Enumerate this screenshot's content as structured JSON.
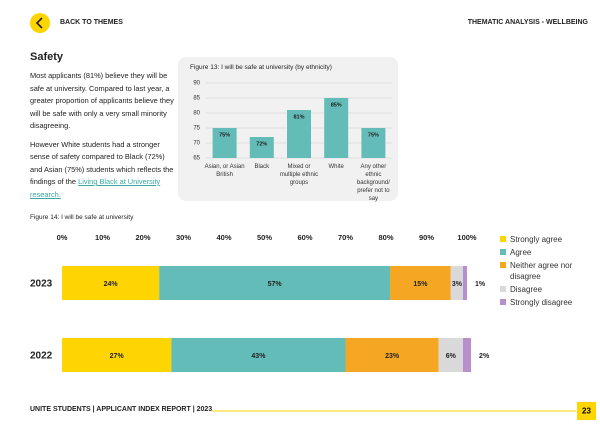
{
  "header": {
    "back": "BACK TO THEMES",
    "section": "THEMATIC ANALYSIS - WELLBEING"
  },
  "text": {
    "heading": "Safety",
    "paragraph1": "Most applicants (81%) believe they will be safe at university. Compared to last year, a greater proportion of applicants believe they will be safe with only a very small minority disagreeing.",
    "paragraph2": "However White students had a stronger sense of safety compared to Black (72%) and Asian (75%) students which reflects the findings of the",
    "link": "Living Black at University research."
  },
  "chart_data": [
    {
      "type": "bar",
      "title": "Figure 13: I will be safe at university (by ethnicity)",
      "categories": [
        "Asian, or Asian British",
        "Black",
        "Mixed or multiple ethnic groups",
        "White",
        "Any other ethnic background/ prefer not to say"
      ],
      "values": [
        75,
        72,
        81,
        85,
        75
      ],
      "value_labels": [
        "75%",
        "72%",
        "81%",
        "85%",
        "75%"
      ],
      "color": "#63bcb8",
      "ylim": [
        65,
        90
      ],
      "yticks": [
        65,
        70,
        75,
        80,
        85,
        90
      ],
      "grid": true
    },
    {
      "type": "stacked-barh",
      "title": "Figure 14: I will be safe at university",
      "categories": [
        "2023",
        "2022"
      ],
      "series": [
        {
          "name": "Strongly agree",
          "color": "#ffd500",
          "values": [
            24,
            27
          ],
          "value_labels": [
            "24%",
            "27%"
          ]
        },
        {
          "name": "Agree",
          "color": "#63bcb8",
          "values": [
            57,
            43
          ],
          "value_labels": [
            "57%",
            "43%"
          ]
        },
        {
          "name": "Neither agree nor disagree",
          "color": "#f5a623",
          "values": [
            15,
            23
          ],
          "value_labels": [
            "15%",
            "23%"
          ]
        },
        {
          "name": "Disagree",
          "color": "#d9d9d9",
          "values": [
            3,
            6
          ],
          "value_labels": [
            "3%",
            "6%"
          ]
        },
        {
          "name": "Strongly disagree",
          "color": "#b78fca",
          "values": [
            1,
            2
          ],
          "value_labels": [
            "1%",
            "2%"
          ]
        }
      ],
      "xlim": [
        0,
        100
      ],
      "xticks": [
        {
          "value": 0,
          "label": "0%"
        },
        {
          "value": 10,
          "label": "10%"
        },
        {
          "value": 20,
          "label": "20%"
        },
        {
          "value": 30,
          "label": "30%"
        },
        {
          "value": 40,
          "label": "40%"
        },
        {
          "value": 50,
          "label": "50%"
        },
        {
          "value": 60,
          "label": "60%"
        },
        {
          "value": 70,
          "label": "70%"
        },
        {
          "value": 80,
          "label": "80%"
        },
        {
          "value": 90,
          "label": "90%"
        },
        {
          "value": 100,
          "label": "100%"
        }
      ],
      "legend": "right"
    }
  ],
  "footer": {
    "report": "UNITE STUDENTS | APPLICANT INDEX REPORT | 2023",
    "page": "23"
  }
}
